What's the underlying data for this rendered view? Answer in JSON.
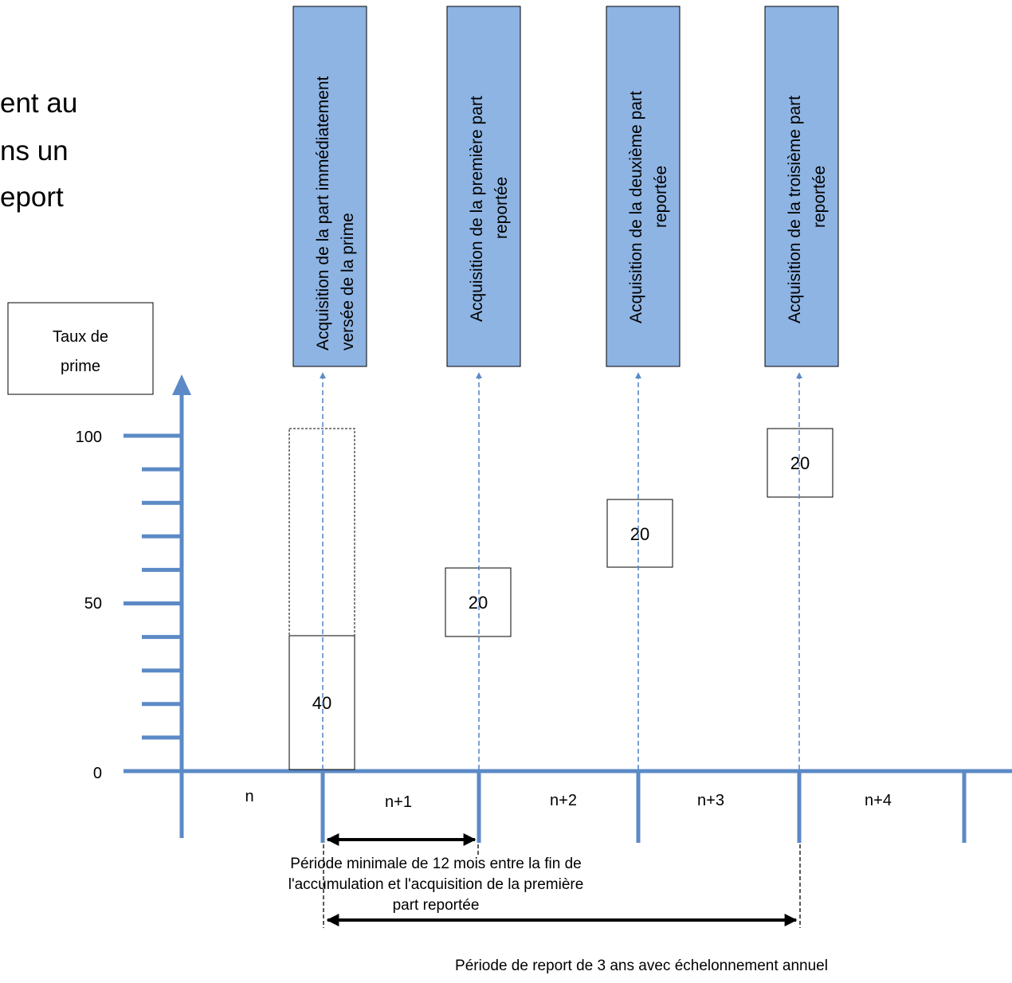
{
  "heading_lines": [
    "ent au",
    "ns un",
    "eport"
  ],
  "y_axis": {
    "title_lines": [
      "Taux de",
      "prime"
    ],
    "tick_labels": [
      "100",
      "50",
      "0"
    ],
    "range": [
      0,
      100
    ],
    "minor_step": 10
  },
  "periods": [
    "n",
    "n+1",
    "n+2",
    "n+3",
    "n+4"
  ],
  "acquisitions": [
    {
      "lines": [
        "Acquisition de la part immédiatement",
        "versée de la prime"
      ],
      "value": "40"
    },
    {
      "lines": [
        "Acquisition de la première part",
        "reportée"
      ],
      "value": "20"
    },
    {
      "lines": [
        "Acquisition de la deuxième part",
        "reportée"
      ],
      "value": "20"
    },
    {
      "lines": [
        "Acquisition de la troisième part",
        "reportée"
      ],
      "value": "20"
    }
  ],
  "min_period_note": [
    "Période minimale de 12 mois entre la fin de",
    "l'accumulation et l'acquisition de la première",
    "part reportée"
  ],
  "deferral_note": "Période de report de 3 ans avec échelonnement annuel",
  "colors": {
    "axis": "#5b8ac6",
    "box_fill": "#8eb4e3",
    "box_stroke": "#000000"
  }
}
